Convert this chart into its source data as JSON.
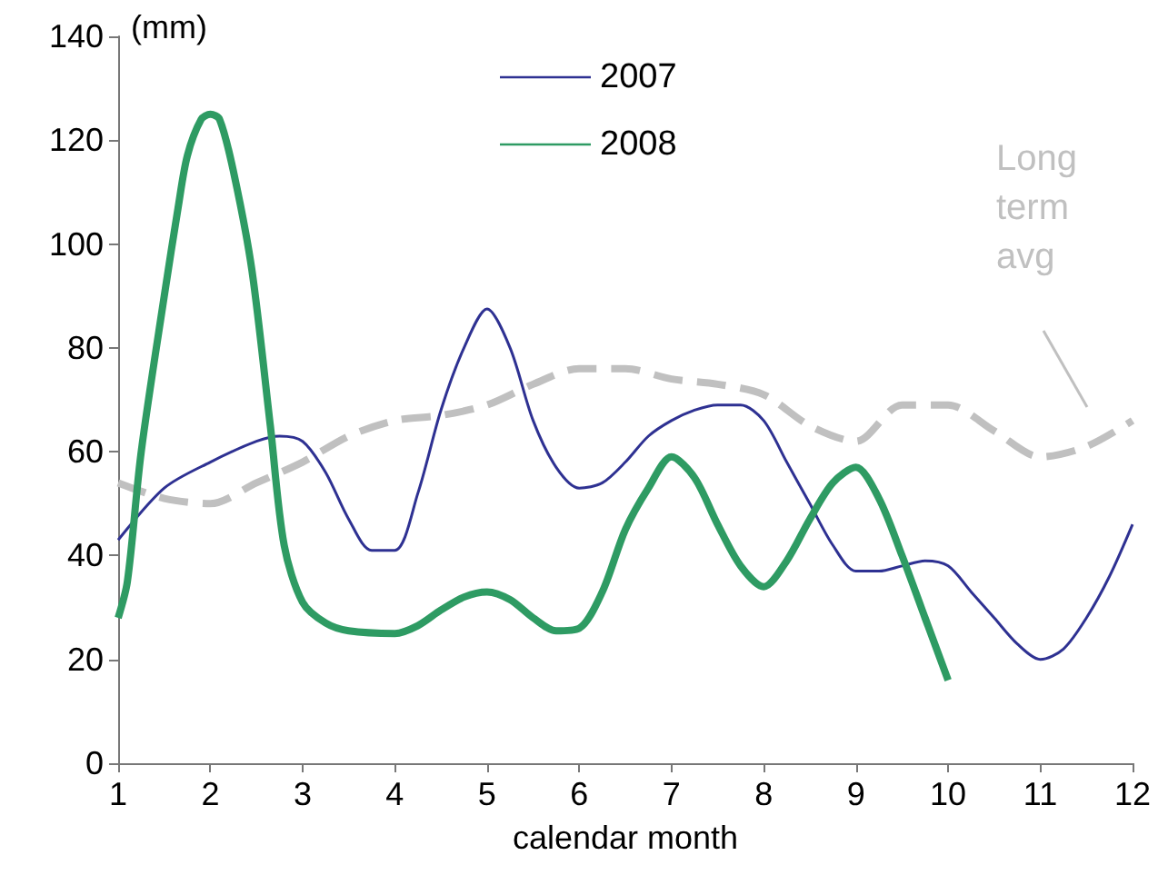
{
  "chart_data": {
    "type": "line",
    "ylabel": "(mm)",
    "xlabel": "calendar month",
    "xlim": [
      1,
      12
    ],
    "xticks": [
      1,
      2,
      3,
      4,
      5,
      6,
      7,
      8,
      9,
      10,
      11,
      12
    ],
    "ylim": [
      0,
      140
    ],
    "yticks": [
      0,
      20,
      40,
      60,
      80,
      100,
      120,
      140
    ],
    "grid": false,
    "legend": "top",
    "marker": "none",
    "series": [
      {
        "name": "2007",
        "color": "#2e3192",
        "line_style": "solid",
        "x": [
          1,
          1.5,
          2,
          2.5,
          2.75,
          3,
          3.25,
          3.5,
          3.75,
          4,
          4.25,
          4.5,
          4.75,
          5,
          5.25,
          5.5,
          5.75,
          6,
          6.25,
          6.5,
          6.75,
          7,
          7.25,
          7.5,
          7.75,
          8,
          8.25,
          8.5,
          8.75,
          9,
          9.25,
          9.5,
          9.75,
          10,
          10.25,
          10.5,
          10.75,
          11,
          11.25,
          11.5,
          11.75,
          12
        ],
        "values": [
          43,
          53,
          58,
          62,
          63,
          62,
          56,
          47,
          41,
          41,
          52,
          68,
          80,
          87.5,
          80,
          66,
          57,
          53,
          54,
          58,
          63,
          66,
          68,
          69,
          69,
          66,
          58,
          50,
          42,
          37,
          37,
          38,
          39,
          38,
          33,
          28,
          23,
          20,
          22,
          28,
          36,
          46
        ]
      },
      {
        "name": "2008",
        "color": "#2e9b63",
        "line_style": "solid",
        "x": [
          1,
          1.1,
          1.25,
          1.5,
          1.65,
          1.75,
          1.9,
          2,
          2.1,
          2.25,
          2.45,
          2.65,
          2.8,
          3,
          3.25,
          3.5,
          4,
          4.25,
          4.5,
          4.75,
          5,
          5.25,
          5.5,
          5.75,
          6,
          6.25,
          6.5,
          6.75,
          7,
          7.25,
          7.5,
          7.75,
          8,
          8.25,
          8.5,
          8.75,
          9,
          9.25,
          9.5,
          9.75,
          10
        ],
        "values": [
          28,
          35,
          60,
          90,
          107,
          117,
          124,
          125,
          124,
          114,
          95,
          65,
          42,
          31,
          27,
          25.5,
          25,
          26.5,
          29.5,
          32,
          33,
          31.5,
          28,
          25.5,
          26,
          33,
          45,
          53,
          59,
          55,
          46,
          38,
          34,
          39,
          47,
          54,
          57,
          51,
          40,
          28,
          16
        ]
      },
      {
        "name": "Long term avg",
        "color": "#c0c0c0",
        "line_style": "dashed",
        "x": [
          1,
          1.5,
          2,
          2.5,
          3,
          3.5,
          4,
          4.5,
          5,
          5.5,
          6,
          6.5,
          7,
          7.5,
          8,
          8.5,
          9,
          9.5,
          10,
          10.5,
          11,
          11.5,
          12
        ],
        "values": [
          54,
          51,
          50,
          54,
          58,
          63,
          66,
          67,
          69,
          73,
          76,
          76,
          74,
          73,
          71,
          65,
          62,
          69,
          69,
          64,
          59,
          61,
          66
        ]
      }
    ]
  }
}
